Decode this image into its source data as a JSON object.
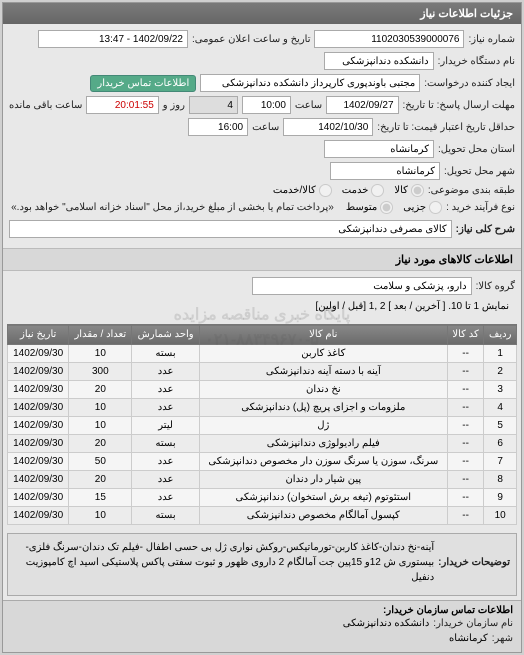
{
  "header": {
    "title": "جزئیات اطلاعات نیاز"
  },
  "form": {
    "request_no_label": "شماره نیاز:",
    "request_no": "1102030539000076",
    "announce_label": "تاریخ و ساعت اعلان عمومی:",
    "announce_value": "1402/09/22 - 13:47",
    "org_label": "نام دستگاه خریدار:",
    "org_value": "دانشکده دندانپزشکی",
    "creator_label": "ایجاد کننده درخواست:",
    "creator_value": "مجتبی  باوندپوری کارپرداز دانشکده دندانپزشکی",
    "contact_btn": "اطلاعات تماس خریدار",
    "deadline_label": "مهلت ارسال پاسخ: تا تاریخ:",
    "deadline_date": "1402/09/27",
    "time_label": "ساعت",
    "deadline_time": "10:00",
    "days_label": "روز و",
    "days_value": "4",
    "remain_label": "ساعت باقی مانده",
    "remain_value": "20:01:55",
    "validity_label": "حداقل تاریخ اعتبار قیمت: تا تاریخ:",
    "validity_date": "1402/10/30",
    "validity_time": "16:00",
    "city_label": "استان محل تحویل:",
    "city_value": "کرمانشاه",
    "city2_label": "شهر محل تحویل:",
    "city2_value": "کرمانشاه",
    "pkg_label": "طبقه بندی موضوعی:",
    "pkg_opts": {
      "a": "کالا",
      "b": "خدمت",
      "c": "کالا/خدمت"
    },
    "adv_label": "نوع فرآیند خرید :",
    "adv_opts": {
      "a": "جزیی",
      "b": "متوسط"
    },
    "adv_note": "«پرداخت تمام یا بخشی از مبلغ خرید،از محل \"اسناد خزانه اسلامی\" خواهد بود.»",
    "subject_label": "شرح کلی نیاز:",
    "subject_value": "کالای مصرفی دندانپزشکی"
  },
  "items_section_title": "اطلاعات کالاهای مورد نیاز",
  "group_label": "گروه کالا:",
  "group_value": "دارو، پزشکی و سلامت",
  "pager": {
    "text": "نمایش 1 تا 10.",
    "links": "[ آخرین / بعد ] 2 ,1 [قبل / اولین]"
  },
  "table": {
    "headers": [
      "ردیف",
      "کد کالا",
      "نام کالا",
      "واحد شمارش",
      "تعداد / مقدار",
      "تاریخ نیاز"
    ],
    "rows": [
      [
        "1",
        "--",
        "کاغذ کاربن",
        "بسته",
        "10",
        "1402/09/30"
      ],
      [
        "2",
        "--",
        "آینه با دسته آینه دندانپزشکی",
        "عدد",
        "300",
        "1402/09/30"
      ],
      [
        "3",
        "--",
        "نخ دندان",
        "عدد",
        "20",
        "1402/09/30"
      ],
      [
        "4",
        "--",
        "ملزومات و اجزای پریچ (پل) دندانپزشکی",
        "عدد",
        "10",
        "1402/09/30"
      ],
      [
        "5",
        "--",
        "ژل",
        "لیتر",
        "10",
        "1402/09/30"
      ],
      [
        "6",
        "--",
        "فیلم رادیولوژی دندانپزشکی",
        "بسته",
        "20",
        "1402/09/30"
      ],
      [
        "7",
        "--",
        "سرنگ، سوزن یا سرنگ سوزن دار مخصوص دندانپزشکی",
        "عدد",
        "50",
        "1402/09/30"
      ],
      [
        "8",
        "--",
        "پین شیار دار دندان",
        "عدد",
        "20",
        "1402/09/30"
      ],
      [
        "9",
        "--",
        "استئوتوم (تیغه برش استخوان) دندانپزشکی",
        "عدد",
        "15",
        "1402/09/30"
      ],
      [
        "10",
        "--",
        "کپسول آمالگام مخصوص دندانپزشکی",
        "بسته",
        "10",
        "1402/09/30"
      ]
    ]
  },
  "buyer_note_label": "توضیحات خریدار:",
  "buyer_note": "آینه-نخ دندان-کاغذ کاربن-تورماتیکس-روکش نواری ژل بی حسی اطفال -فیلم تک دندان-سرنگ فلزی-بیستوری ش 12و 15پین جت آمالگام 2 داروی ظهور و ثبوت سفتی پاکس پلاستیکی اسید اچ کامپوزیت دنفیل",
  "footer": {
    "title": "اطلاعات تماس سازمان خریدار:",
    "org_label": "نام سازمان خریدار:",
    "org": "دانشکده دندانپزشکی",
    "city_label": "شهر:",
    "city": "کرمانشاه"
  },
  "watermark": {
    "line1": "پایگاه خبری مناقصه مزایده",
    "line2": "۰۲۱-۸۸۳۴۹۶۷۰-۵"
  }
}
